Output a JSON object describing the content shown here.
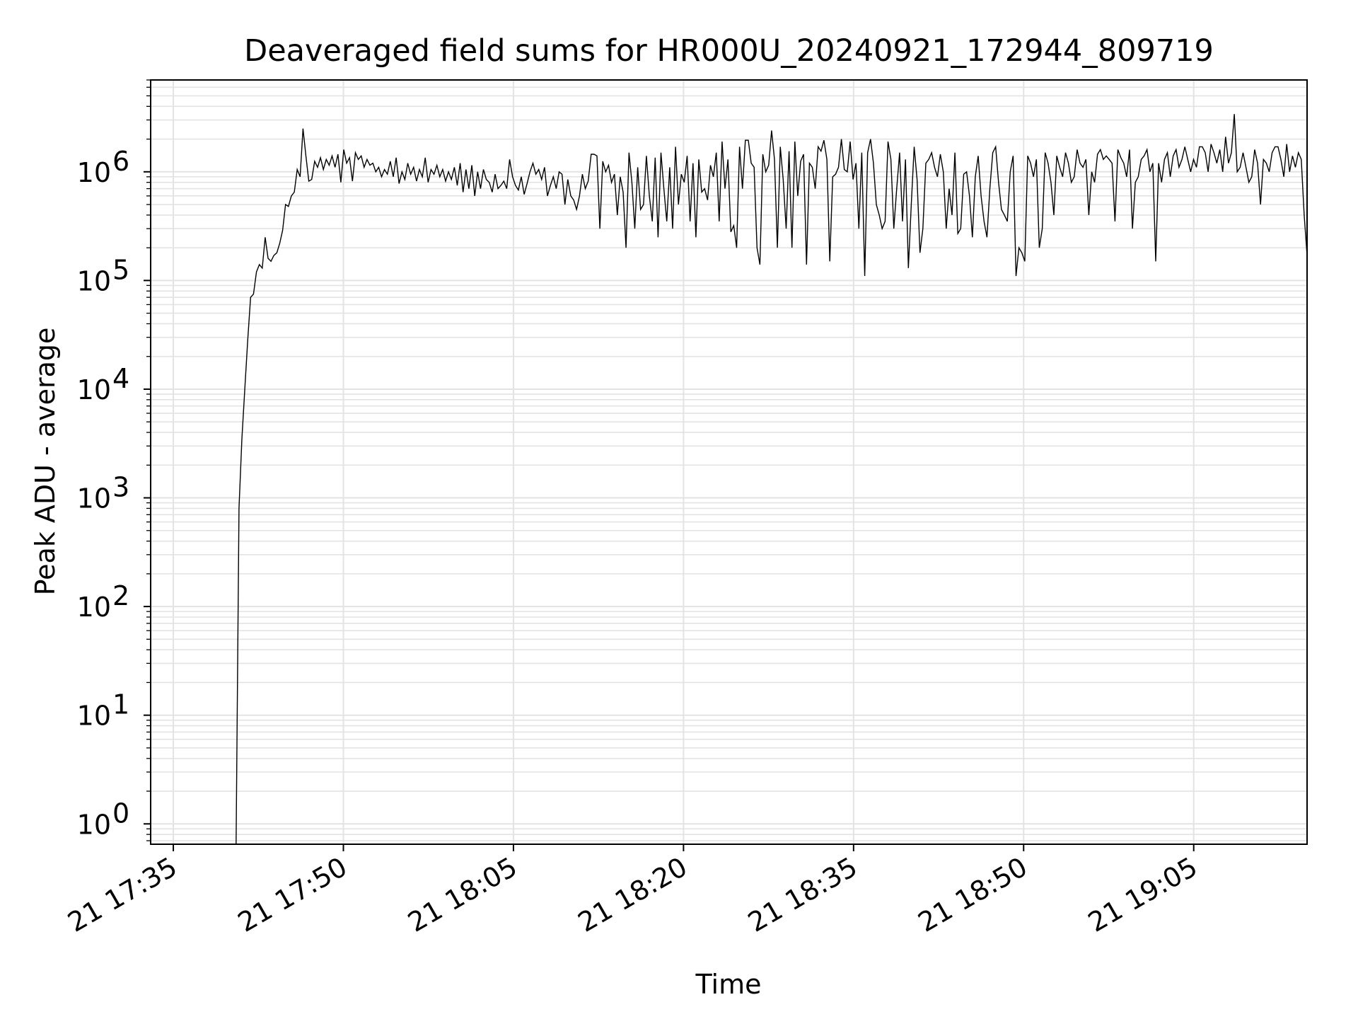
{
  "chart_data": {
    "type": "line",
    "title": "Deaveraged field sums for HR000U_20240921_172944_809719",
    "xlabel": "Time",
    "ylabel": "Peak ADU - average",
    "yscale": "log",
    "ylim": [
      0.65,
      7000000
    ],
    "xlim": [
      "2024-09-21 17:33",
      "2024-09-21 19:15"
    ],
    "x_ticks": [
      {
        "t": "2024-09-21 17:35",
        "label": "21 17:35"
      },
      {
        "t": "2024-09-21 17:50",
        "label": "21 17:50"
      },
      {
        "t": "2024-09-21 18:05",
        "label": "21 18:05"
      },
      {
        "t": "2024-09-21 18:20",
        "label": "21 18:20"
      },
      {
        "t": "2024-09-21 18:35",
        "label": "21 18:35"
      },
      {
        "t": "2024-09-21 18:50",
        "label": "21 18:50"
      },
      {
        "t": "2024-09-21 19:05",
        "label": "21 19:05"
      }
    ],
    "y_ticks": [
      {
        "v": 1,
        "base": "10",
        "exp": "0"
      },
      {
        "v": 10,
        "base": "10",
        "exp": "1"
      },
      {
        "v": 100,
        "base": "10",
        "exp": "2"
      },
      {
        "v": 1000,
        "base": "10",
        "exp": "3"
      },
      {
        "v": 10000,
        "base": "10",
        "exp": "4"
      },
      {
        "v": 100000,
        "base": "10",
        "exp": "5"
      },
      {
        "v": 1000000,
        "base": "10",
        "exp": "6"
      }
    ],
    "grid": true,
    "line_color": "#000000",
    "grid_color": "#e3e3e3",
    "series": [
      {
        "time_start": "2024-09-21 17:40:32",
        "time_end": "2024-09-21 19:15:00",
        "values": [
          0.65,
          800,
          3500,
          10000,
          28000,
          70000,
          75000,
          120000,
          140000,
          130000,
          250000,
          160000,
          150000,
          170000,
          180000,
          220000,
          290000,
          500000,
          480000,
          600000,
          650000,
          1050000,
          900000,
          2500000,
          1400000,
          820000,
          850000,
          1250000,
          1100000,
          1350000,
          1050000,
          1300000,
          1150000,
          1400000,
          1100000,
          1450000,
          800000,
          1600000,
          1200000,
          1350000,
          820000,
          1500000,
          1300000,
          1400000,
          1100000,
          1300000,
          1150000,
          1200000,
          1000000,
          1100000,
          900000,
          1050000,
          950000,
          1250000,
          900000,
          1350000,
          780000,
          1000000,
          850000,
          1200000,
          950000,
          1100000,
          820000,
          1050000,
          900000,
          1350000,
          800000,
          1050000,
          950000,
          1150000,
          900000,
          1050000,
          820000,
          1000000,
          850000,
          1100000,
          750000,
          1200000,
          650000,
          1050000,
          700000,
          1150000,
          600000,
          1000000,
          700000,
          1050000,
          850000,
          800000,
          650000,
          950000,
          700000,
          750000,
          820000,
          700000,
          1300000,
          900000,
          750000,
          680000,
          900000,
          620000,
          780000,
          1000000,
          1200000,
          950000,
          1050000,
          850000,
          1100000,
          600000,
          750000,
          900000,
          700000,
          1000000,
          950000,
          500000,
          850000,
          600000,
          550000,
          450000,
          600000,
          950000,
          700000,
          820000,
          1450000,
          1450000,
          1400000,
          300000,
          1250000,
          1000000,
          1150000,
          800000,
          950000,
          400000,
          900000,
          650000,
          200000,
          1500000,
          800000,
          300000,
          1100000,
          450000,
          500000,
          1400000,
          600000,
          350000,
          1350000,
          250000,
          1500000,
          700000,
          350000,
          1100000,
          300000,
          1700000,
          500000,
          950000,
          800000,
          1400000,
          350000,
          1200000,
          250000,
          1300000,
          650000,
          700000,
          550000,
          1150000,
          900000,
          1500000,
          350000,
          1900000,
          700000,
          1300000,
          280000,
          320000,
          200000,
          1700000,
          700000,
          1950000,
          1950000,
          1200000,
          1100000,
          200000,
          140000,
          1450000,
          1000000,
          1150000,
          2400000,
          1300000,
          200000,
          1700000,
          850000,
          300000,
          1550000,
          200000,
          1900000,
          600000,
          1250000,
          1450000,
          140000,
          1200000,
          1100000,
          700000,
          1700000,
          1550000,
          1950000,
          1300000,
          150000,
          900000,
          950000,
          1100000,
          2000000,
          1050000,
          1000000,
          1900000,
          850000,
          1200000,
          300000,
          1500000,
          110000,
          1500000,
          2000000,
          1200000,
          500000,
          400000,
          300000,
          350000,
          1900000,
          1300000,
          300000,
          700000,
          1500000,
          350000,
          1300000,
          130000,
          500000,
          1700000,
          850000,
          180000,
          300000,
          1200000,
          1300000,
          1500000,
          1100000,
          900000,
          1450000,
          1000000,
          300000,
          700000,
          400000,
          1500000,
          270000,
          300000,
          950000,
          1000000,
          600000,
          250000,
          900000,
          1400000,
          600000,
          350000,
          250000,
          700000,
          1500000,
          1700000,
          800000,
          450000,
          400000,
          350000,
          1000000,
          1400000,
          110000,
          200000,
          180000,
          150000,
          1400000,
          1200000,
          900000,
          1300000,
          200000,
          300000,
          1500000,
          1200000,
          800000,
          400000,
          1400000,
          1100000,
          900000,
          1500000,
          1200000,
          800000,
          900000,
          1600000,
          1200000,
          1100000,
          1300000,
          400000,
          1000000,
          800000,
          1450000,
          1600000,
          1300000,
          1400000,
          1300000,
          1200000,
          350000,
          1600000,
          1350000,
          1200000,
          900000,
          1600000,
          300000,
          800000,
          900000,
          1300000,
          1400000,
          1600000,
          1000000,
          1200000,
          150000,
          1200000,
          800000,
          1300000,
          1500000,
          900000,
          1400000,
          1600000,
          1100000,
          1300000,
          1700000,
          1300000,
          1000000,
          1300000,
          1100000,
          1700000,
          1700000,
          1500000,
          1000000,
          1800000,
          1500000,
          1200000,
          1600000,
          1000000,
          2100000,
          1200000,
          1500000,
          3400000,
          1000000,
          1100000,
          1500000,
          1100000,
          800000,
          900000,
          1600000,
          1200000,
          500000,
          1300000,
          1200000,
          1000000,
          1500000,
          1700000,
          1700000,
          1300000,
          900000,
          1800000,
          1000000,
          1400000,
          1100000,
          1500000,
          1300000,
          400000,
          170000
        ]
      }
    ]
  }
}
